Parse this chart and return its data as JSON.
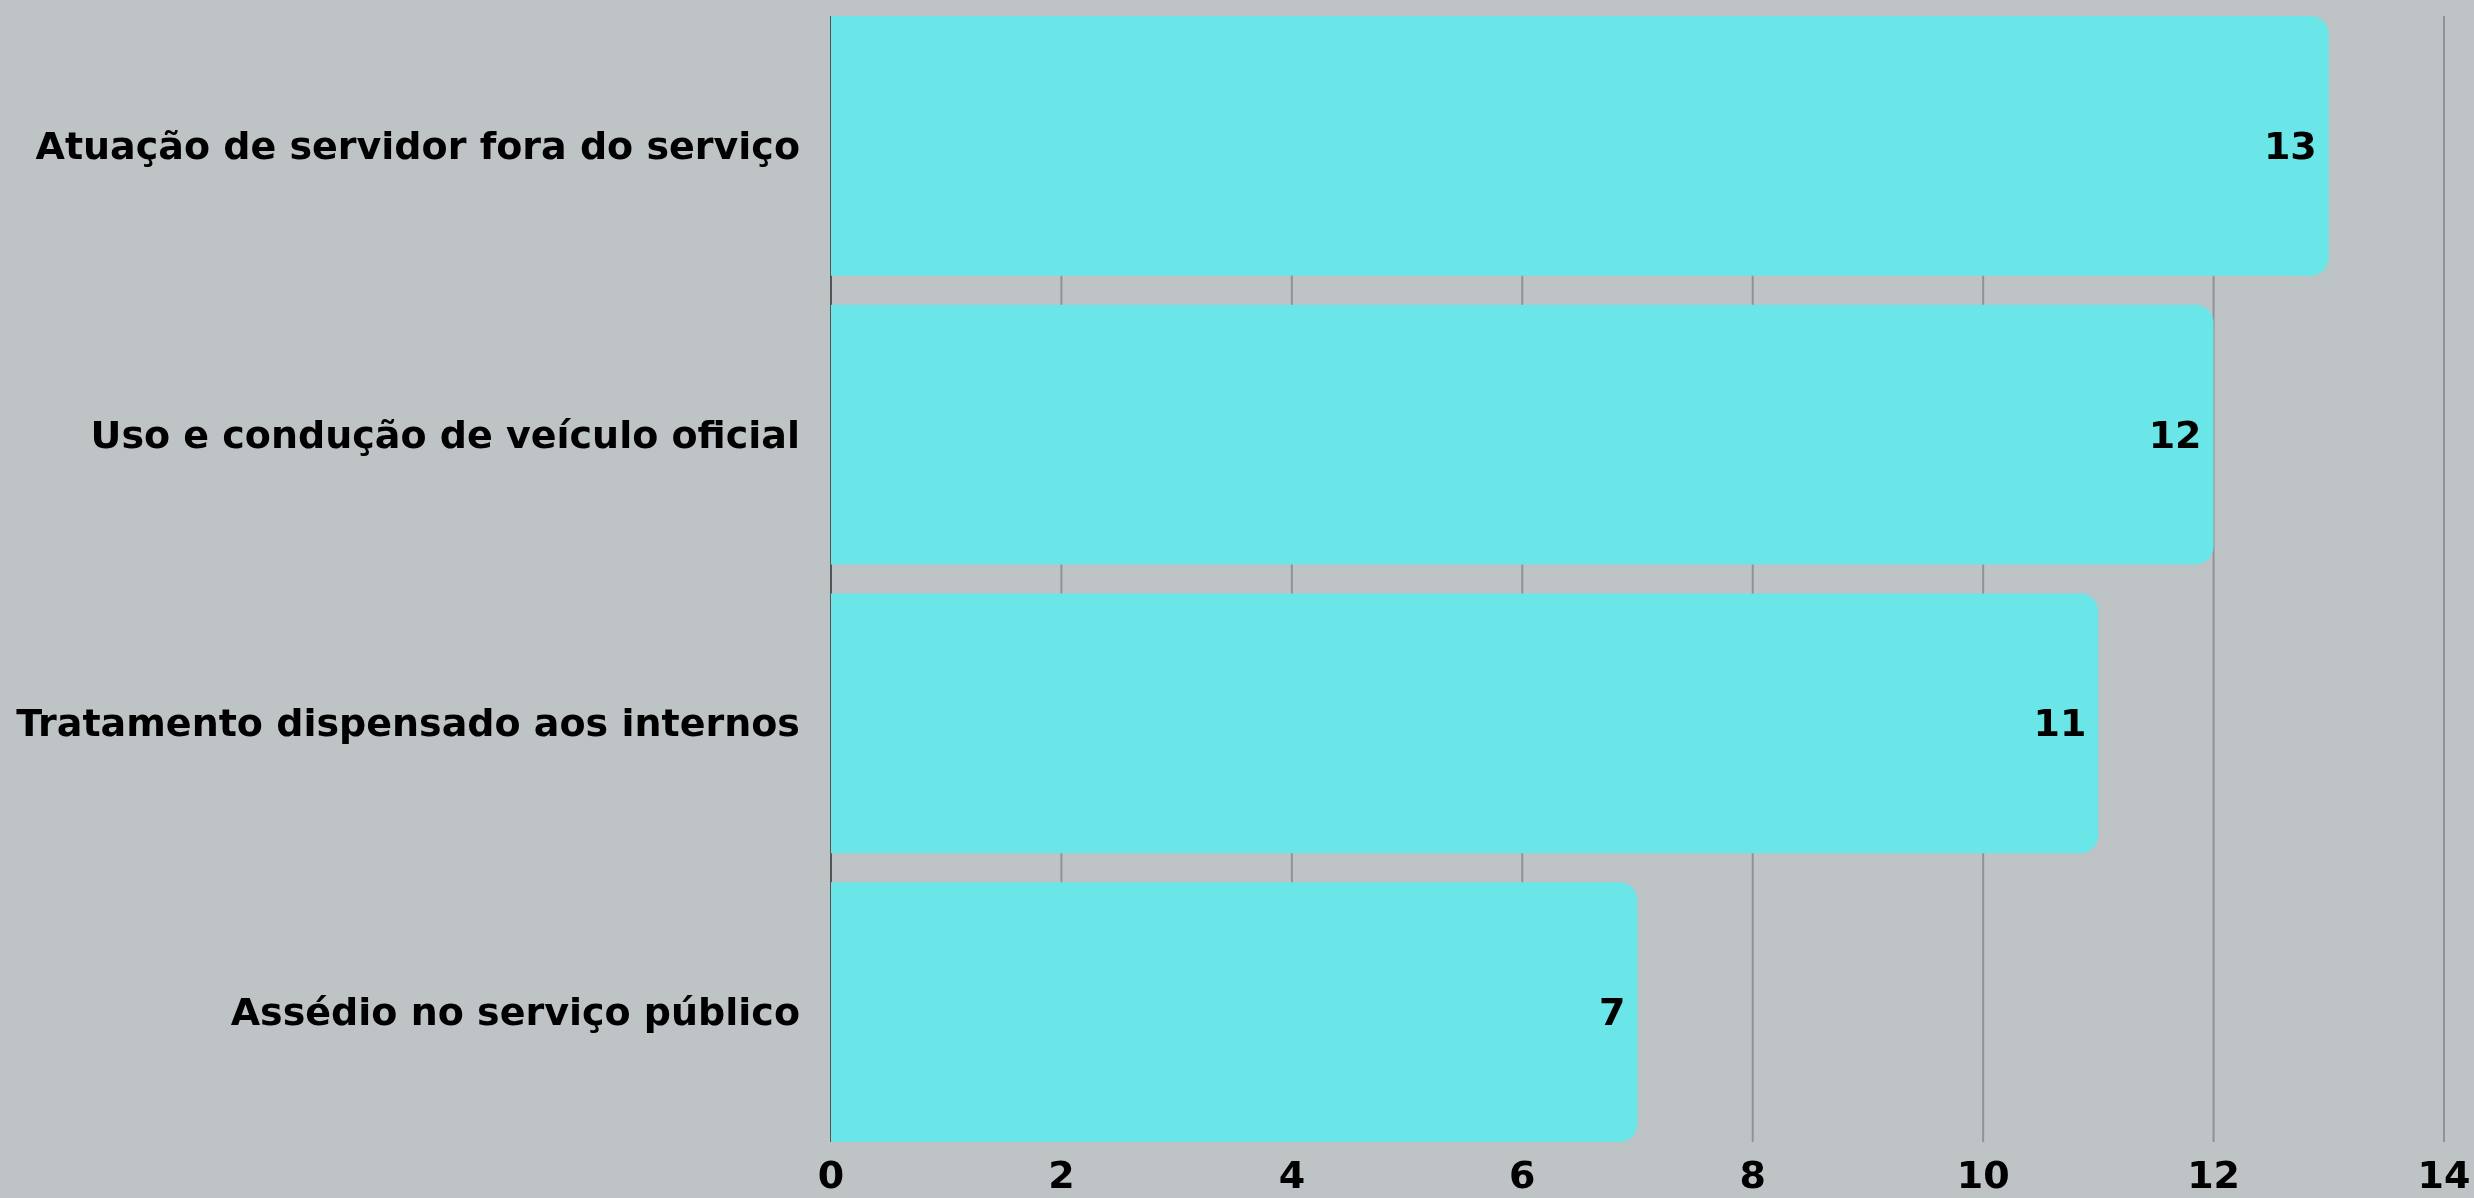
{
  "chart_data": {
    "type": "bar",
    "orientation": "horizontal",
    "categories": [
      "Atuação de servidor fora do serviço",
      "Uso e condução de veículo oficial",
      "Tratamento dispensado aos internos",
      "Assédio no serviço público"
    ],
    "values": [
      13,
      12,
      11,
      7
    ],
    "color": "#6ae6e8",
    "xlim": [
      0,
      14
    ],
    "xticks": [
      0,
      2,
      4,
      6,
      8,
      10,
      12,
      14
    ],
    "grid": "x",
    "data_labels": true
  }
}
